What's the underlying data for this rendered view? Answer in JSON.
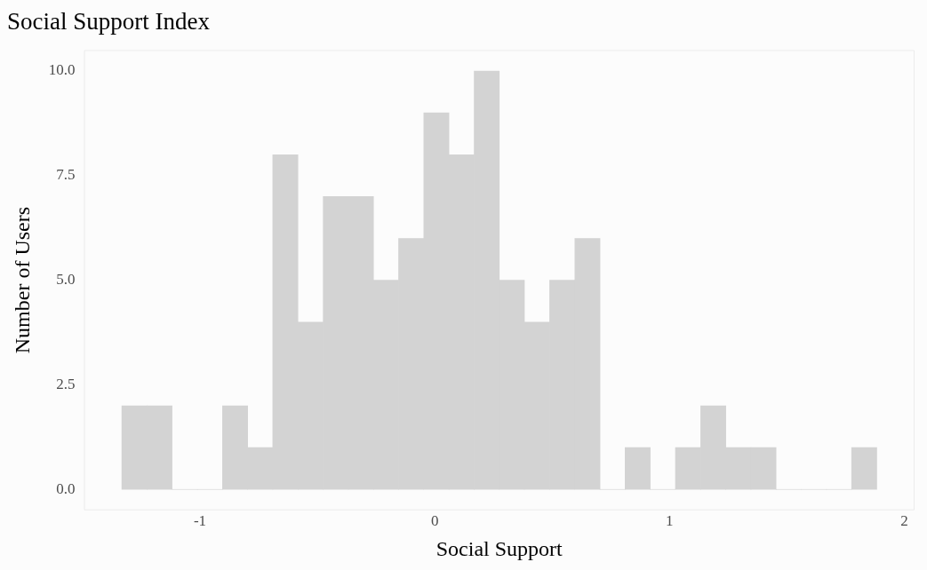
{
  "chart_data": {
    "type": "histogram",
    "title": "Social Support Index",
    "xlabel": "Social Support",
    "ylabel": "Number of Users",
    "bins": [
      -1.333,
      -1.226,
      -1.119,
      -1.011,
      -0.904,
      -0.797,
      -0.69,
      -0.583,
      -0.475,
      -0.368,
      -0.261,
      -0.154,
      -0.047,
      0.061,
      0.168,
      0.275,
      0.382,
      0.489,
      0.597,
      0.704,
      0.811,
      0.918,
      1.025,
      1.133,
      1.24,
      1.347,
      1.454,
      1.561,
      1.669,
      1.776,
      1.883
    ],
    "values": [
      2,
      2,
      0,
      0,
      2,
      1,
      8,
      4,
      7,
      7,
      5,
      6,
      9,
      8,
      10,
      5,
      4,
      5,
      6,
      0,
      1,
      0,
      1,
      2,
      1,
      1,
      0,
      0,
      0,
      1
    ],
    "color": "#d3d3d3",
    "xlim": [
      -1.494,
      2.044
    ],
    "xticks": [
      -1,
      0,
      1,
      2
    ],
    "ylim": [
      -0.5,
      10.5
    ],
    "yticks": [
      {
        "value": 0,
        "label": "0.0"
      },
      {
        "value": 2.5,
        "label": "2.5"
      },
      {
        "value": 5,
        "label": "5.0"
      },
      {
        "value": 7.5,
        "label": "7.5"
      },
      {
        "value": 10,
        "label": "10.0"
      }
    ],
    "grid": false,
    "legend": false
  }
}
